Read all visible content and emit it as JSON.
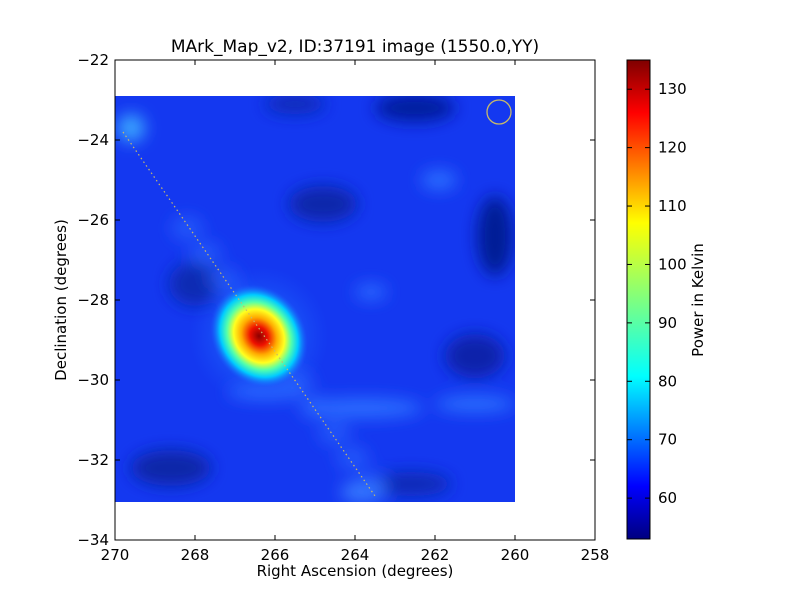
{
  "chart_data": {
    "type": "heatmap",
    "title": "MArk_Map_v2, ID:37191 image (1550.0,YY)",
    "xlabel": "Right Ascension (degrees)",
    "ylabel": "Declination (degrees)",
    "xlim": [
      270,
      258
    ],
    "ylim": [
      -34,
      -22
    ],
    "x_ticks": [
      "270",
      "268",
      "266",
      "264",
      "262",
      "260",
      "258"
    ],
    "y_ticks": [
      "−22",
      "−24",
      "−26",
      "−28",
      "−30",
      "−32",
      "−34"
    ],
    "image_extent": {
      "ra": [
        270,
        260
      ],
      "dec": [
        -33.05,
        -22.9
      ]
    },
    "colormap": "jet",
    "colorbar": {
      "label": "Power in Kelvin",
      "range": [
        53,
        135
      ],
      "ticks": [
        "60",
        "70",
        "80",
        "90",
        "100",
        "110",
        "120",
        "130"
      ]
    },
    "background_level": 60,
    "peak": {
      "ra": 266.4,
      "dec": -28.9,
      "value": 135
    },
    "galactic_plane_line": {
      "start": {
        "ra": 269.8,
        "dec": -23.8
      },
      "end": {
        "ra": 263.5,
        "dec": -32.9
      },
      "style": "dotted",
      "color": "#c8b96a"
    },
    "beam_marker": {
      "ra": 260.4,
      "dec": -23.3,
      "radius_deg": 0.3,
      "color": "#c8b96a"
    }
  }
}
